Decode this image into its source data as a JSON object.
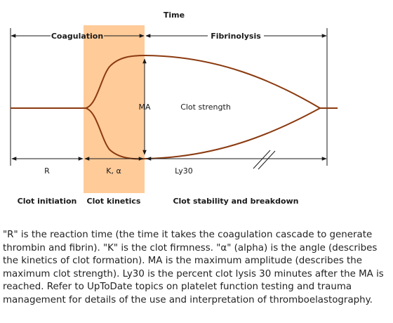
{
  "diagram": {
    "title": "Time",
    "phases": {
      "coagulation": "Coagulation",
      "fibrinolysis": "Fibrinolysis"
    },
    "labels": {
      "ma": "MA",
      "clot_strength": "Clot strength",
      "r": "R",
      "k_alpha": "K, α",
      "ly30": "Ly30"
    },
    "stages": {
      "initiation": "Clot initiation",
      "kinetics": "Clot kinetics",
      "stability": "Clot stability and breakdown"
    },
    "colors": {
      "curve": "#8b3a0f",
      "highlight": "#ffcb99",
      "arrows": "#1a1a1a"
    }
  },
  "caption": "\"R\" is the reaction time (the time it takes the coagulation cascade to generate thrombin and fibrin). \"K\" is the clot firmness. \"α\" (alpha) is the angle (describes the kinetics of clot formation). MA is the maximum amplitude (describes the maximum clot strength). Ly30 is the percent clot lysis 30 minutes after the MA is reached. Refer to UpToDate topics on platelet function testing and trauma management for details of the use and interpretation of thromboelastography."
}
